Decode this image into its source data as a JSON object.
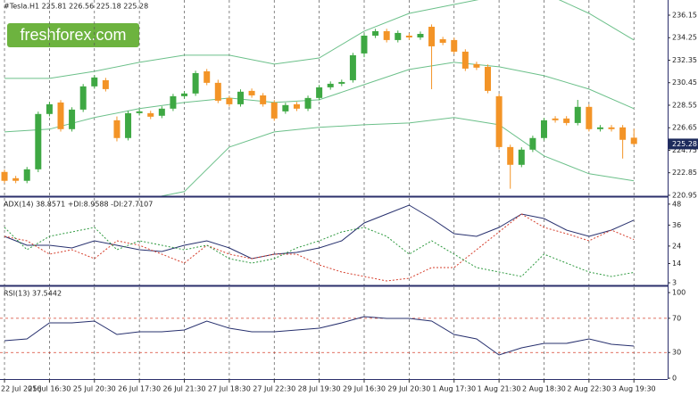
{
  "watermark": "freshforex.com",
  "chart_data": [
    {
      "type": "candlestick",
      "title": "#Tesla.H1 225.81 226.56 225.18 225.28",
      "open": [
        222.92,
        222.39,
        222.17,
        223.14,
        227.81,
        228.78,
        226.53,
        228.18,
        230.14,
        230.66,
        227.28,
        225.78,
        227.88,
        227.88,
        227.66,
        228.26,
        229.31,
        229.54,
        231.41,
        230.44,
        229.16,
        228.63,
        229.76,
        229.38,
        228.78,
        228.03,
        228.63,
        228.26,
        229.16,
        230.06,
        230.36,
        230.66,
        232.92,
        234.42,
        234.8,
        234.05,
        234.42,
        234.27,
        235.17,
        234.12,
        234.05,
        233.07,
        232.02,
        231.79,
        229.31,
        225.02,
        223.52,
        224.8,
        225.78,
        227.43,
        227.43,
        227.05,
        228.41,
        226.53,
        226.68,
        226.68,
        225.81
      ],
      "high": [
        223.12,
        222.59,
        223.34,
        228.01,
        228.83,
        228.98,
        228.38,
        230.34,
        231.09,
        230.86,
        227.6,
        228.08,
        228.23,
        228.08,
        228.46,
        229.51,
        229.74,
        231.46,
        231.61,
        230.7,
        229.36,
        229.89,
        229.96,
        229.58,
        228.98,
        228.76,
        228.83,
        229.36,
        230.26,
        230.56,
        230.71,
        232.97,
        234.62,
        235.0,
        235.0,
        234.85,
        234.62,
        234.77,
        235.37,
        234.32,
        234.25,
        233.27,
        232.22,
        231.99,
        229.51,
        225.22,
        225.0,
        225.98,
        227.48,
        227.63,
        227.63,
        229.0,
        228.61,
        226.88,
        226.88,
        226.88,
        226.56
      ],
      "low": [
        221.97,
        221.97,
        221.97,
        222.9,
        227.61,
        226.33,
        226.33,
        227.98,
        229.94,
        229.71,
        225.5,
        225.58,
        227.68,
        227.38,
        227.46,
        228.06,
        229.11,
        229.34,
        230.24,
        228.73,
        228.43,
        228.43,
        229.18,
        228.43,
        227.23,
        227.83,
        228.06,
        228.06,
        228.96,
        229.86,
        230.16,
        230.46,
        232.6,
        234.22,
        233.85,
        233.85,
        234.07,
        234.07,
        229.9,
        233.62,
        232.87,
        231.44,
        231.52,
        229.56,
        224.82,
        221.5,
        223.32,
        224.6,
        225.58,
        227.08,
        226.85,
        226.85,
        226.33,
        226.33,
        226.33,
        224.05,
        225.18
      ],
      "close": [
        222.17,
        222.17,
        223.14,
        227.81,
        228.63,
        226.53,
        228.18,
        230.14,
        230.89,
        229.91,
        225.78,
        227.88,
        228.03,
        227.58,
        228.26,
        229.31,
        229.54,
        231.26,
        230.44,
        228.93,
        228.63,
        229.69,
        229.38,
        228.63,
        227.43,
        228.56,
        228.26,
        229.16,
        230.06,
        230.36,
        230.51,
        232.77,
        234.42,
        234.8,
        234.05,
        234.65,
        234.27,
        234.57,
        233.52,
        233.82,
        233.07,
        231.64,
        231.72,
        229.76,
        225.02,
        223.52,
        224.8,
        225.78,
        227.28,
        227.28,
        227.05,
        228.41,
        226.53,
        226.68,
        226.53,
        225.63,
        225.28
      ],
      "color_up": "#3ea843",
      "color_down": "#f39427",
      "overlay_x": [
        0,
        4,
        8,
        12,
        16,
        20,
        24,
        28,
        32,
        36,
        40,
        44,
        48,
        52,
        56
      ],
      "overlays": [
        {
          "color": "#6cc08a",
          "values": [
            230.81,
            230.81,
            231.41,
            232.17,
            232.77,
            232.77,
            232.02,
            232.54,
            234.8,
            236.3,
            237.05,
            237.81,
            238.03,
            236.3,
            234.05
          ]
        },
        {
          "color": "#6cc08a",
          "values": [
            226.3,
            226.53,
            227.51,
            228.26,
            228.78,
            229.16,
            228.78,
            229.01,
            230.29,
            231.57,
            232.17,
            231.79,
            231.04,
            229.91,
            228.26
          ]
        },
        {
          "color": "#6cc08a",
          "values": [
            220.14,
            219.76,
            220.51,
            220.51,
            221.26,
            225.02,
            226.3,
            226.68,
            226.9,
            227.05,
            227.51,
            226.9,
            224.27,
            222.77,
            222.17
          ]
        }
      ],
      "last_price": 225.28,
      "ylim": [
        220.87,
        237.43
      ],
      "yticks": [
        236.15,
        234.25,
        232.35,
        230.45,
        228.55,
        226.65,
        224.75,
        222.85,
        220.95
      ]
    },
    {
      "type": "line",
      "title": "ADX(14) 38.8571 +DI:8.9588 -DI:27.7107",
      "x": [
        0,
        2,
        4,
        6,
        8,
        10,
        12,
        14,
        16,
        18,
        20,
        22,
        24,
        26,
        28,
        30,
        32,
        34,
        36,
        38,
        40,
        42,
        44,
        46,
        48,
        50,
        52,
        54,
        56
      ],
      "series": [
        {
          "color": "#27306e",
          "dash": false,
          "values": [
            29.56,
            24.46,
            24.46,
            22.93,
            27.01,
            24.46,
            21.91,
            20.89,
            24.46,
            27.01,
            22.93,
            16.81,
            19.36,
            20.38,
            22.93,
            27.01,
            37.21,
            42.32,
            47.42,
            39.77,
            31.09,
            29.56,
            34.66,
            42.32,
            39.77,
            33.13,
            29.56,
            33.13,
            38.86
          ]
        },
        {
          "color": "#d6402e",
          "dash": true,
          "values": [
            29.56,
            27.01,
            19.36,
            21.91,
            16.81,
            27.01,
            24.46,
            19.36,
            14.26,
            24.46,
            19.36,
            16.81,
            19.36,
            19.36,
            13.23,
            9.15,
            6.6,
            4.05,
            5.58,
            11.7,
            11.7,
            21.91,
            32.11,
            42.32,
            34.66,
            31.09,
            27.01,
            33.13,
            27.71
          ]
        },
        {
          "color": "#2f9a40",
          "dash": true,
          "values": [
            34.66,
            21.91,
            29.56,
            32.11,
            34.66,
            21.91,
            27.01,
            24.46,
            21.91,
            24.46,
            16.81,
            14.26,
            16.81,
            22.93,
            27.01,
            32.11,
            34.66,
            29.56,
            19.36,
            27.01,
            19.36,
            11.7,
            9.15,
            6.6,
            19.36,
            14.26,
            9.15,
            6.6,
            8.96
          ]
        }
      ],
      "ylim": [
        1.5,
        51.5
      ],
      "yticks": [
        48,
        36,
        24,
        14,
        3
      ]
    },
    {
      "type": "line",
      "title": "RSI(13) 37.5442",
      "x": [
        0,
        2,
        4,
        6,
        8,
        10,
        12,
        14,
        16,
        18,
        20,
        22,
        24,
        26,
        28,
        30,
        32,
        34,
        36,
        38,
        40,
        42,
        44,
        46,
        48,
        50,
        52,
        54,
        56
      ],
      "series": [
        {
          "color": "#27306e",
          "dash": false,
          "values": [
            43.75,
            45.83,
            64.58,
            64.58,
            66.67,
            51.04,
            54.17,
            54.17,
            56.25,
            66.67,
            58.33,
            54.17,
            54.17,
            56.25,
            58.33,
            64.58,
            71.88,
            69.79,
            69.79,
            66.67,
            51.04,
            45.83,
            27.08,
            35.42,
            40.63,
            40.63,
            45.83,
            39.58,
            37.54
          ]
        }
      ],
      "levels": [
        70,
        30
      ],
      "level_color": "#d6402e",
      "ylim": [
        -1,
        106.3
      ],
      "yticks": [
        100,
        70,
        30,
        0
      ],
      "xlim": [
        -0.4,
        59
      ],
      "xticks": [
        {
          "value": 0,
          "label": "22 Jul 2016"
        },
        {
          "value": 4,
          "label": "25 Jul 16:30"
        },
        {
          "value": 8,
          "label": "25 Jul 20:30"
        },
        {
          "value": 12,
          "label": "26 Jul 17:30"
        },
        {
          "value": 16,
          "label": "26 Jul 21:30"
        },
        {
          "value": 20,
          "label": "27 Jul 18:30"
        },
        {
          "value": 24,
          "label": "27 Jul 22:30"
        },
        {
          "value": 28,
          "label": "28 Jul 19:30"
        },
        {
          "value": 32,
          "label": "29 Jul 16:30"
        },
        {
          "value": 36,
          "label": "29 Jul 20:30"
        },
        {
          "value": 40,
          "label": "1 Aug 17:30"
        },
        {
          "value": 44,
          "label": "1 Aug 21:30"
        },
        {
          "value": 48,
          "label": "2 Aug 18:30"
        },
        {
          "value": 52,
          "label": "2 Aug 22:30"
        },
        {
          "value": 56,
          "label": "3 Aug 19:30"
        }
      ]
    }
  ]
}
